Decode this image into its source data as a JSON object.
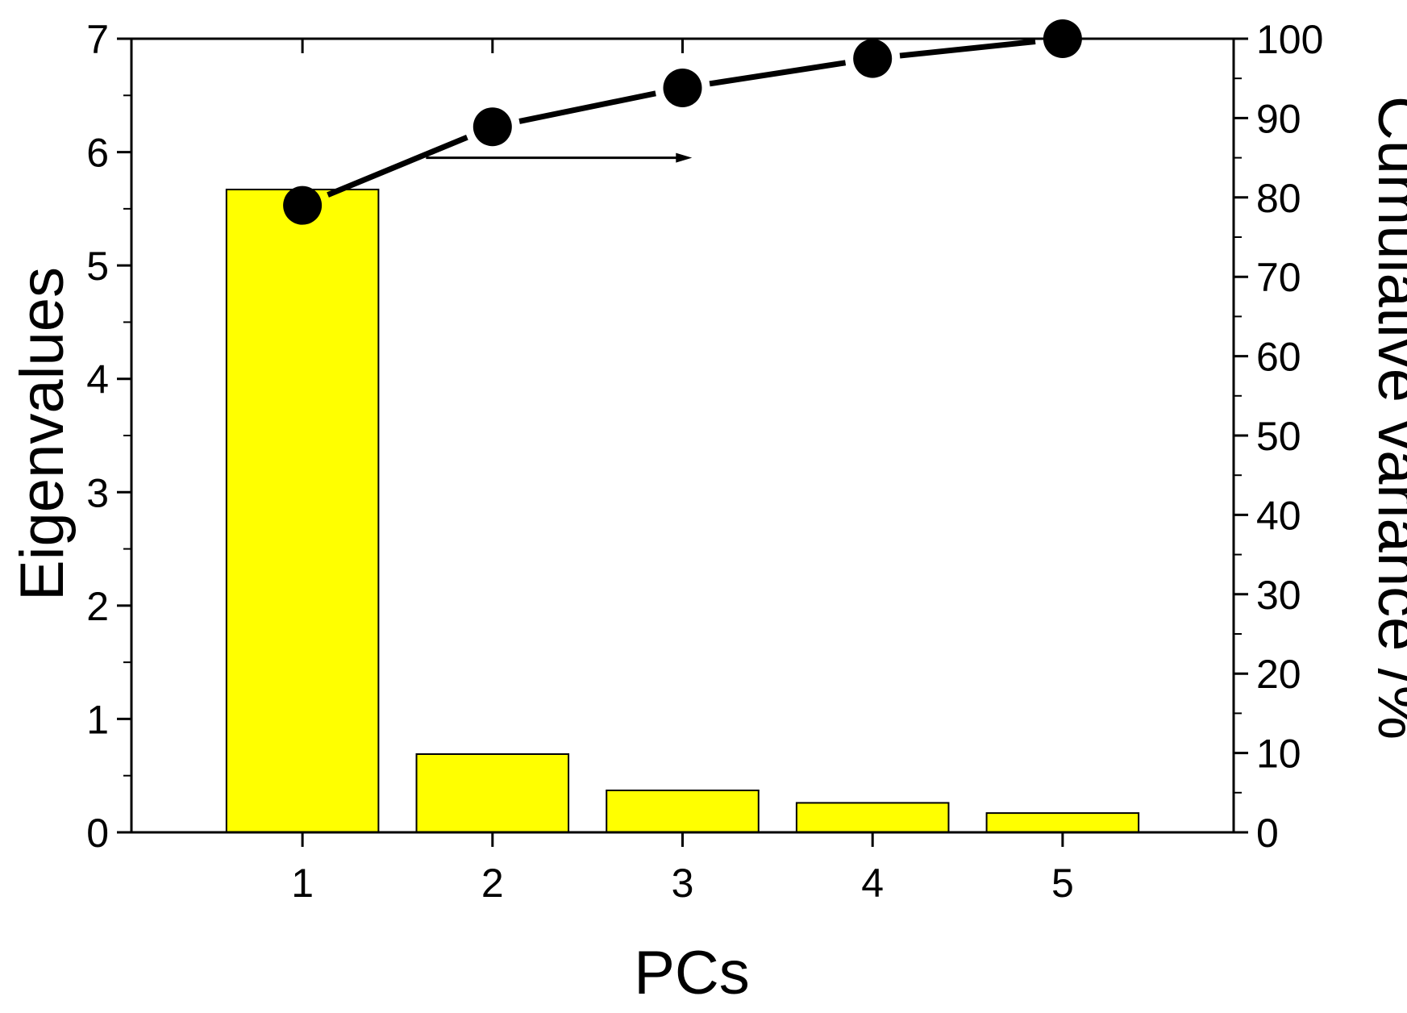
{
  "chart_data": {
    "type": "bar",
    "categories": [
      "1",
      "2",
      "3",
      "4",
      "5"
    ],
    "series": [
      {
        "type": "bar",
        "axis": "left",
        "values": [
          5.67,
          0.69,
          0.37,
          0.26,
          0.17
        ]
      },
      {
        "type": "line",
        "axis": "right",
        "values": [
          79.0,
          88.9,
          93.8,
          97.5,
          100.0
        ]
      }
    ],
    "xlabel": "PCs",
    "ylabel": "Eigenvalues",
    "y2label": "Cumulative variance /%",
    "ylim": [
      0,
      7
    ],
    "y2lim": [
      0,
      100
    ],
    "xlim": [
      0.1,
      5.9
    ],
    "yticks": [
      "0",
      "1",
      "2",
      "3",
      "4",
      "5",
      "6",
      "7"
    ],
    "y2ticks": [
      "0",
      "10",
      "20",
      "30",
      "40",
      "50",
      "60",
      "70",
      "80",
      "90",
      "100"
    ],
    "reference_line": {
      "axis": "right",
      "value": 100,
      "style": "dashed"
    },
    "arrow": {
      "from_x": 1.65,
      "to_x": 3.05,
      "y": 85,
      "axis": "right",
      "direction": "right"
    },
    "grid": false,
    "colors": {
      "bar_fill": "#ffff00",
      "bar_stroke": "#000000",
      "line": "#000000",
      "marker": "#000000"
    }
  }
}
